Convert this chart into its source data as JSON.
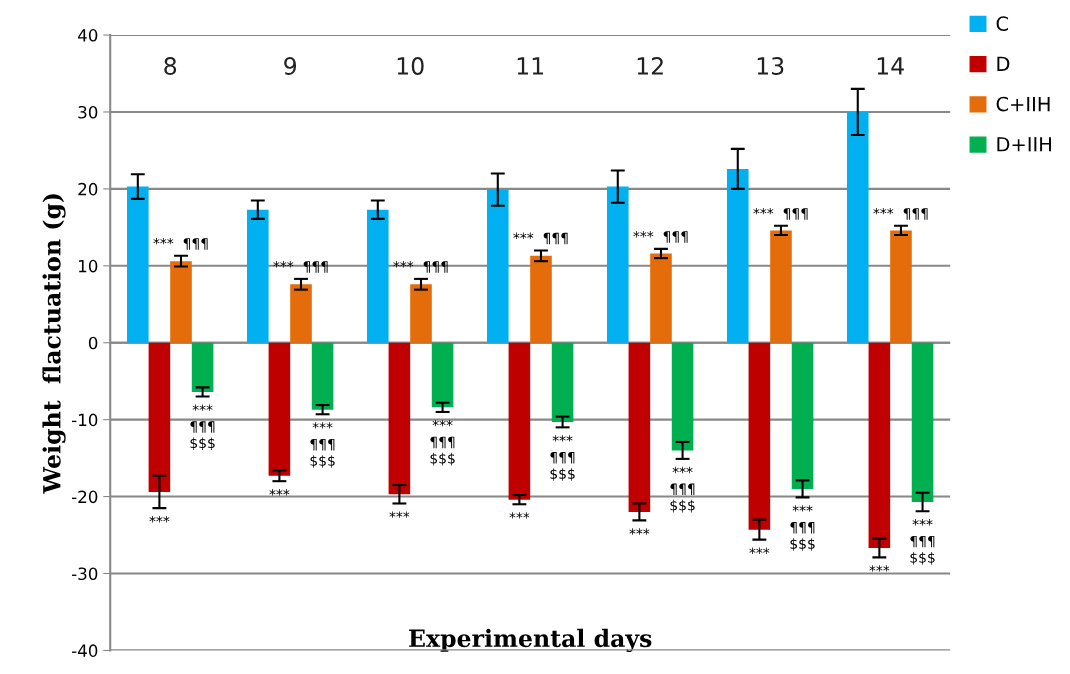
{
  "chart_data": {
    "type": "bar",
    "xlabel": "Experimental days",
    "ylabel": "Weight  flactuation (g)",
    "categories": [
      "8",
      "9",
      "10",
      "11",
      "12",
      "13",
      "14"
    ],
    "series": [
      {
        "name": "C",
        "color": "#00b0f0",
        "values": [
          20.3,
          17.3,
          17.3,
          19.9,
          20.3,
          22.6,
          30.0
        ],
        "errors": [
          1.6,
          1.2,
          1.2,
          2.1,
          2.1,
          2.6,
          3.0
        ]
      },
      {
        "name": "D",
        "color": "#c00000",
        "values": [
          -19.4,
          -17.3,
          -19.7,
          -20.4,
          -22.0,
          -24.3,
          -26.7
        ],
        "errors": [
          2.1,
          0.7,
          1.2,
          0.6,
          1.1,
          1.3,
          1.2
        ],
        "value_labels": [
          "***",
          "***",
          "***",
          "***",
          "***",
          "***",
          "***"
        ]
      },
      {
        "name": "C+IIH",
        "color": "#e46c0a",
        "values": [
          10.6,
          7.6,
          7.6,
          11.3,
          11.6,
          14.6,
          14.6
        ],
        "errors": [
          0.7,
          0.7,
          0.7,
          0.7,
          0.6,
          0.6,
          0.6
        ],
        "value_labels": [
          "***  ¶¶¶",
          "***  ¶¶¶",
          "***  ¶¶¶",
          "***  ¶¶¶",
          "***  ¶¶¶",
          "***  ¶¶¶",
          "***  ¶¶¶"
        ]
      },
      {
        "name": "D+IIH",
        "color": "#00b050",
        "values": [
          -6.4,
          -8.7,
          -8.4,
          -10.3,
          -14.0,
          -19.0,
          -20.7
        ],
        "errors": [
          0.6,
          0.6,
          0.6,
          0.7,
          1.1,
          1.1,
          1.2
        ],
        "value_labels": [
          "***\n¶¶¶\n$$$",
          "***\n¶¶¶\n$$$",
          "***\n¶¶¶\n$$$",
          "***\n¶¶¶\n$$$",
          "***\n¶¶¶\n$$$",
          "***\n¶¶¶\n$$$",
          "***\n¶¶¶\n$$$"
        ]
      }
    ],
    "ylim": [
      -40,
      40
    ],
    "yticks": [
      -40,
      -30,
      -20,
      -10,
      0,
      10,
      20,
      30,
      40
    ],
    "grid": "y",
    "legend": "right"
  }
}
